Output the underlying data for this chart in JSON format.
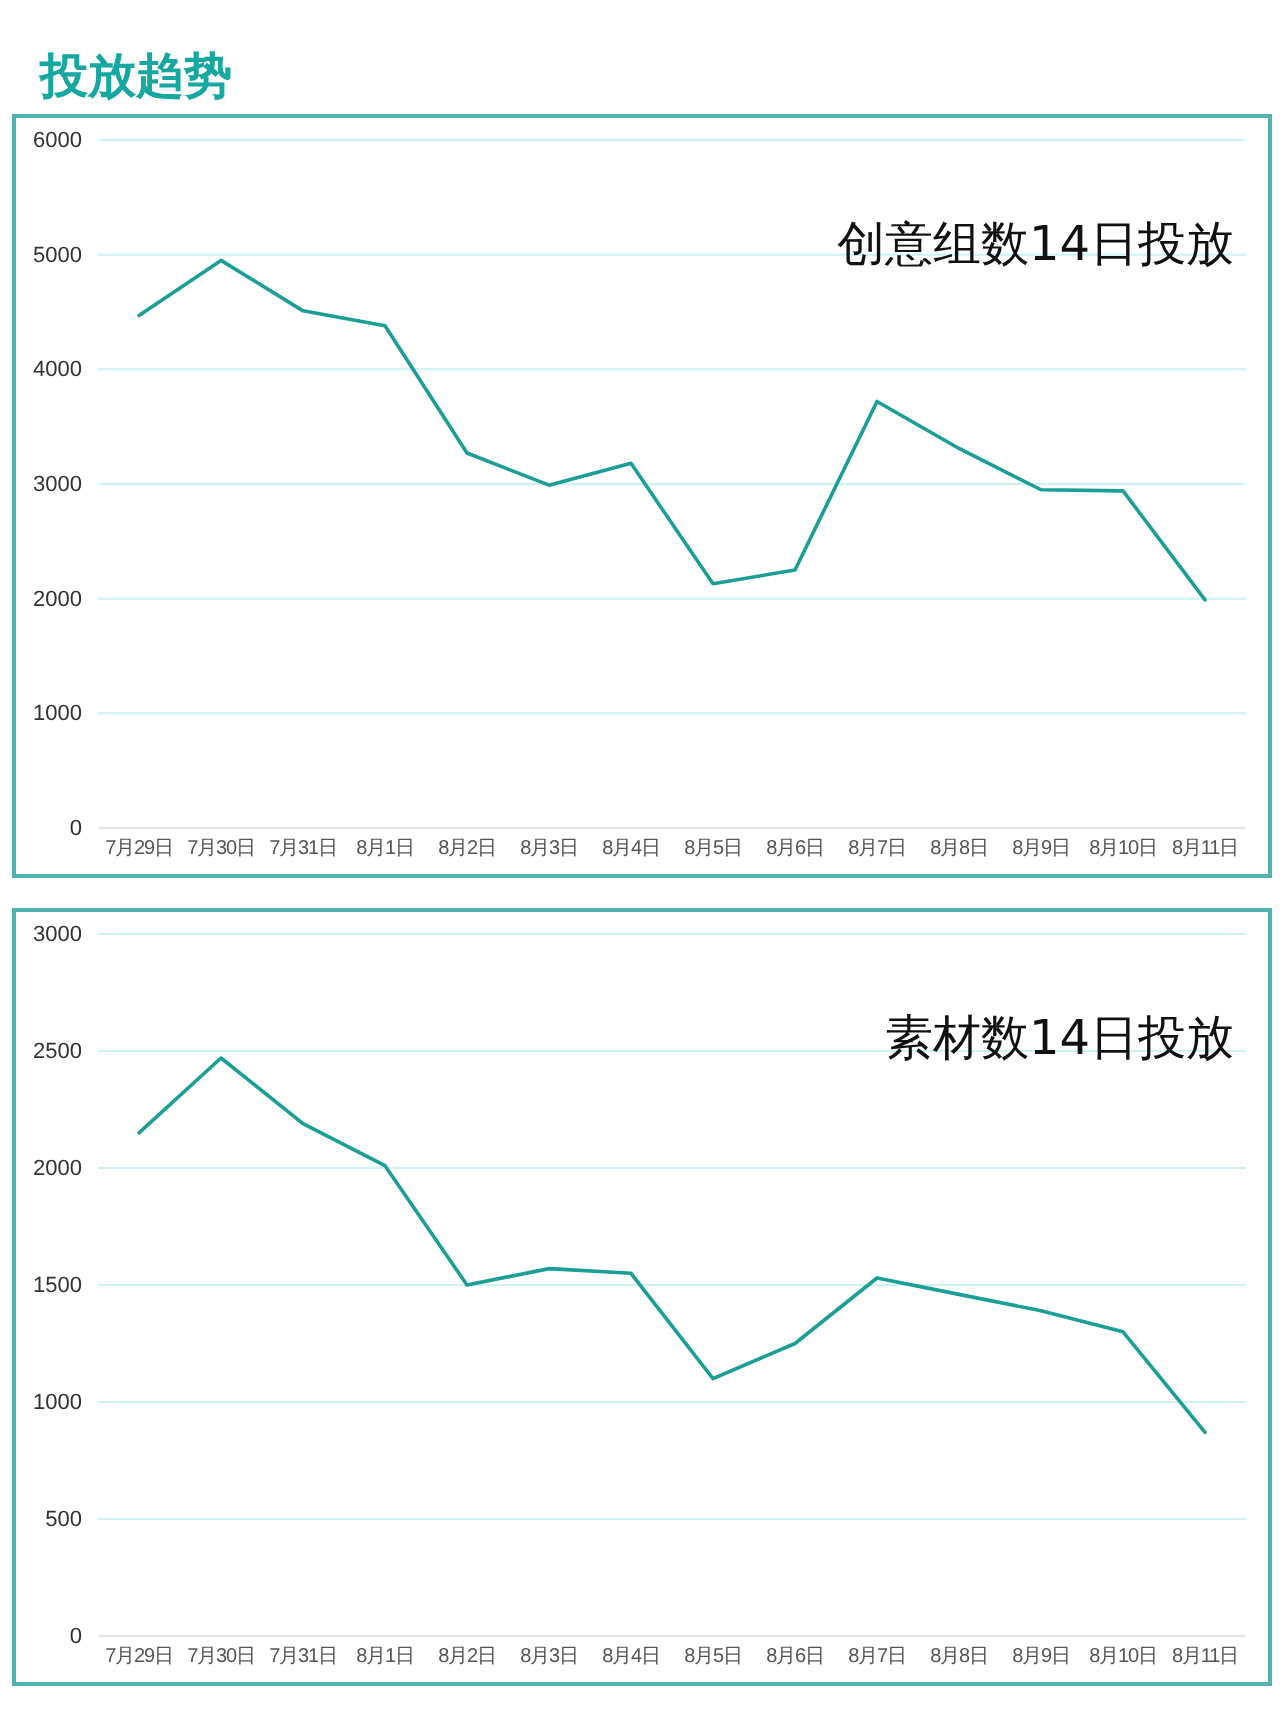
{
  "chart_data": [
    {
      "type": "line",
      "title": "投放趋势",
      "annotations": [
        "创意组数14日投放"
      ],
      "categories": [
        "7月29日",
        "7月30日",
        "7月31日",
        "8月1日",
        "8月2日",
        "8月3日",
        "8月4日",
        "8月5日",
        "8月6日",
        "8月7日",
        "8月8日",
        "8月9日",
        "8月10日",
        "8月11日"
      ],
      "series": [
        {
          "color": "#1a9e96",
          "values": [
            4470,
            4950,
            4510,
            4380,
            3270,
            2990,
            3180,
            2130,
            2250,
            3720,
            3310,
            2950,
            2940,
            1990
          ]
        }
      ],
      "ylim": [
        0,
        6000
      ],
      "yticks": [
        0,
        1000,
        2000,
        3000,
        4000,
        5000,
        6000
      ],
      "grid": "y",
      "marker": "none",
      "line_style": "solid"
    },
    {
      "type": "line",
      "annotations": [
        "素材数14日投放"
      ],
      "categories": [
        "7月29日",
        "7月30日",
        "7月31日",
        "8月1日",
        "8月2日",
        "8月3日",
        "8月4日",
        "8月5日",
        "8月6日",
        "8月7日",
        "8月8日",
        "8月9日",
        "8月10日",
        "8月11日"
      ],
      "series": [
        {
          "color": "#1a9e96",
          "values": [
            2150,
            2470,
            2190,
            2010,
            1500,
            1570,
            1550,
            1100,
            1250,
            1530,
            1460,
            1390,
            1300,
            870
          ]
        }
      ],
      "ylim": [
        0,
        3000
      ],
      "yticks": [
        0,
        500,
        1000,
        1500,
        2000,
        2500,
        3000
      ],
      "grid": "y",
      "marker": "none",
      "line_style": "solid"
    }
  ]
}
